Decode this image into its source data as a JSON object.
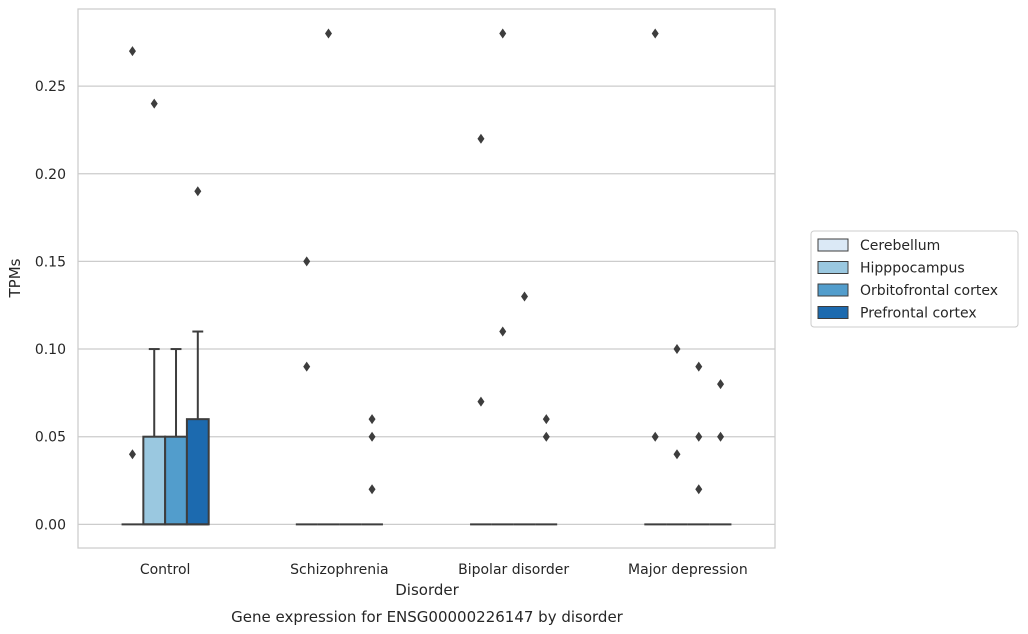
{
  "chart_data": {
    "type": "box",
    "caption": "Gene expression for ENSG00000226147 by disorder",
    "xlabel": "Disorder",
    "ylabel": "TPMs",
    "ylim": [
      -0.0135,
      0.294
    ],
    "yticks": [
      "0.00",
      "0.05",
      "0.10",
      "0.15",
      "0.20",
      "0.25"
    ],
    "categories": [
      "Control",
      "Schizophrenia",
      "Bipolar disorder",
      "Major depression"
    ],
    "grid": "horizontal",
    "legend_position": "right",
    "series": [
      {
        "name": "Cerebellum",
        "color": "#dbe9f6",
        "boxes": [
          {
            "q1": 0,
            "median": 0,
            "q3": 0,
            "whisker_low": 0,
            "whisker_high": 0,
            "outliers": [
              0.04,
              0.27
            ]
          },
          {
            "q1": 0,
            "median": 0,
            "q3": 0,
            "whisker_low": 0,
            "whisker_high": 0,
            "outliers": [
              0.09,
              0.15
            ]
          },
          {
            "q1": 0,
            "median": 0,
            "q3": 0,
            "whisker_low": 0,
            "whisker_high": 0,
            "outliers": [
              0.07,
              0.22
            ]
          },
          {
            "q1": 0,
            "median": 0,
            "q3": 0,
            "whisker_low": 0,
            "whisker_high": 0,
            "outliers": [
              0.05,
              0.28
            ]
          }
        ]
      },
      {
        "name": "Hipppocampus",
        "color": "#9ac8e0",
        "boxes": [
          {
            "q1": 0,
            "median": 0,
            "q3": 0.05,
            "whisker_low": 0,
            "whisker_high": 0.1,
            "outliers": [
              0.24
            ]
          },
          {
            "q1": 0,
            "median": 0,
            "q3": 0,
            "whisker_low": 0,
            "whisker_high": 0,
            "outliers": [
              0.28
            ]
          },
          {
            "q1": 0,
            "median": 0,
            "q3": 0,
            "whisker_low": 0,
            "whisker_high": 0,
            "outliers": [
              0.11,
              0.28
            ]
          },
          {
            "q1": 0,
            "median": 0,
            "q3": 0,
            "whisker_low": 0,
            "whisker_high": 0,
            "outliers": [
              0.04,
              0.1
            ]
          }
        ]
      },
      {
        "name": "Orbitofrontal cortex",
        "color": "#529dcc",
        "boxes": [
          {
            "q1": 0,
            "median": 0,
            "q3": 0.05,
            "whisker_low": 0,
            "whisker_high": 0.1,
            "outliers": []
          },
          {
            "q1": 0,
            "median": 0,
            "q3": 0,
            "whisker_low": 0,
            "whisker_high": 0,
            "outliers": []
          },
          {
            "q1": 0,
            "median": 0,
            "q3": 0,
            "whisker_low": 0,
            "whisker_high": 0,
            "outliers": [
              0.13
            ]
          },
          {
            "q1": 0,
            "median": 0,
            "q3": 0,
            "whisker_low": 0,
            "whisker_high": 0,
            "outliers": [
              0.02,
              0.05,
              0.09
            ]
          }
        ]
      },
      {
        "name": "Prefrontal cortex",
        "color": "#1c6aaf",
        "boxes": [
          {
            "q1": 0,
            "median": 0,
            "q3": 0.06,
            "whisker_low": 0,
            "whisker_high": 0.11,
            "outliers": [
              0.19
            ]
          },
          {
            "q1": 0,
            "median": 0,
            "q3": 0,
            "whisker_low": 0,
            "whisker_high": 0,
            "outliers": [
              0.02,
              0.05,
              0.06
            ]
          },
          {
            "q1": 0,
            "median": 0,
            "q3": 0,
            "whisker_low": 0,
            "whisker_high": 0,
            "outliers": [
              0.05,
              0.06
            ]
          },
          {
            "q1": 0,
            "median": 0,
            "q3": 0,
            "whisker_low": 0,
            "whisker_high": 0,
            "outliers": [
              0.05,
              0.08
            ]
          }
        ]
      }
    ]
  }
}
